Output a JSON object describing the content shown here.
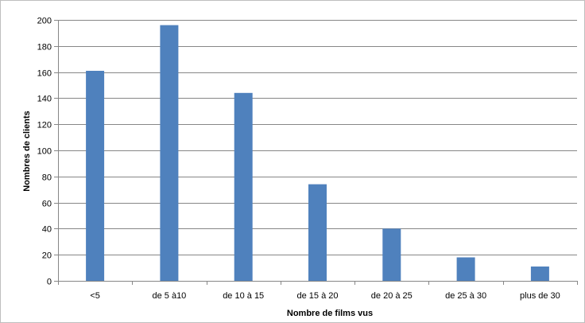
{
  "chart_data": {
    "type": "bar",
    "title": "",
    "xlabel": "Nombre de films vus",
    "ylabel": "Nombres de clients",
    "categories": [
      "<5",
      "de 5  à10",
      "de 10  à 15",
      "de 15  à 20",
      "de 20 à 25",
      "de 25 à 30",
      "plus de 30"
    ],
    "values": [
      161,
      196,
      144,
      74,
      40,
      18,
      11
    ],
    "ylim": [
      0,
      200
    ],
    "yticks": [
      0,
      20,
      40,
      60,
      80,
      100,
      120,
      140,
      160,
      180,
      200
    ],
    "grid": true,
    "legend": "none",
    "bar_color": "#4f81bd"
  }
}
